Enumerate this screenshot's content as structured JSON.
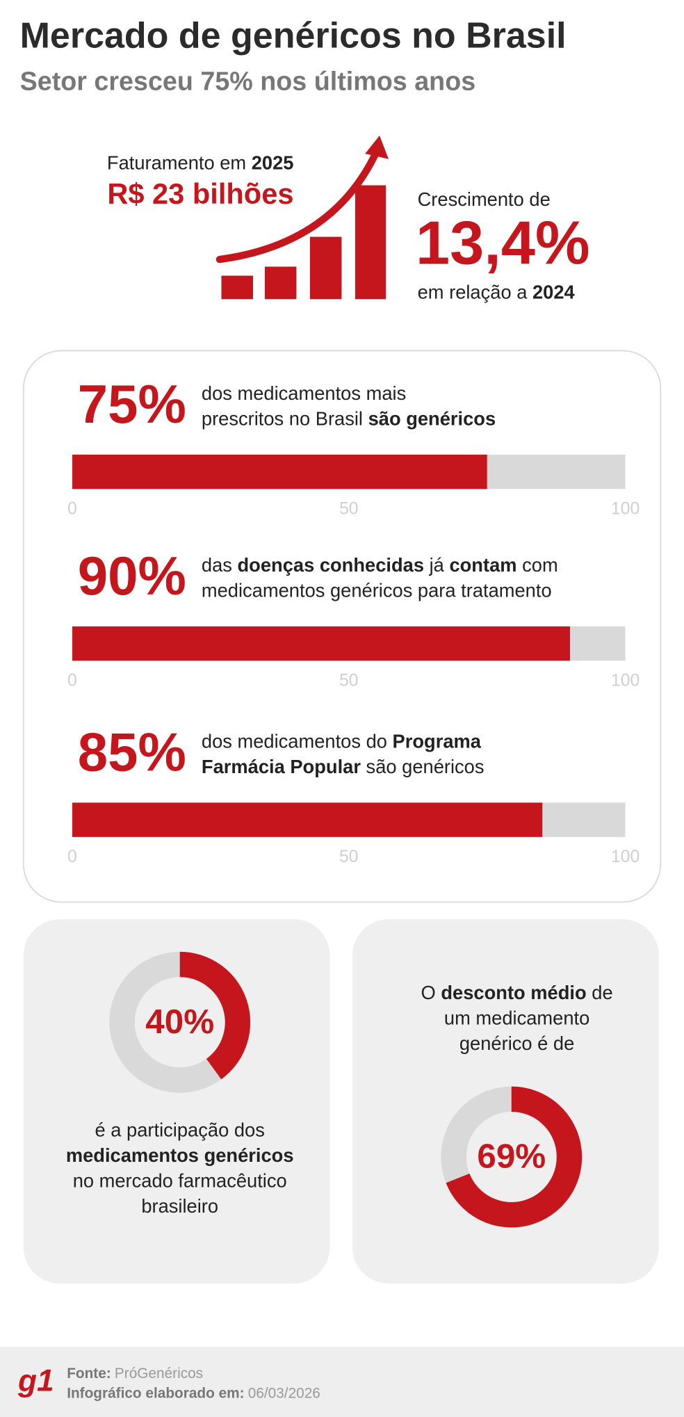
{
  "header": {
    "title": "Mercado de genéricos no Brasil",
    "subtitle": "Setor cresceu 75% nos últimos anos"
  },
  "highlight": {
    "revenue_label": [
      {
        "text": "Faturamento em "
      },
      {
        "text": "2025",
        "bold": true
      }
    ],
    "revenue": "R$ 23 bilhões",
    "growth_label": "Crescimento de",
    "growth": "13,4%",
    "growth_note": [
      {
        "text": "em relação a "
      },
      {
        "text": "2024",
        "bold": true
      }
    ]
  },
  "chart_data": [
    {
      "type": "bar",
      "orientation": "horizontal",
      "values": [
        75
      ],
      "value_labels": [
        "75%"
      ],
      "description": [
        [
          {
            "text": "dos medicamentos mais"
          }
        ],
        [
          {
            "text": "prescritos no Brasil "
          },
          {
            "text": "são genéricos",
            "bold": true
          }
        ]
      ],
      "xlim": [
        0,
        100
      ],
      "xticks": [
        0,
        50,
        100
      ],
      "color": "#c4161c",
      "track_color": "#d9d9d9"
    },
    {
      "type": "bar",
      "orientation": "horizontal",
      "values": [
        90
      ],
      "value_labels": [
        "90%"
      ],
      "description": [
        [
          {
            "text": "das "
          },
          {
            "text": "doenças conhecidas",
            "bold": true
          },
          {
            "text": " já "
          },
          {
            "text": "contam",
            "bold": true
          },
          {
            "text": " com"
          }
        ],
        [
          {
            "text": "medicamentos genéricos para tratamento"
          }
        ]
      ],
      "xlim": [
        0,
        100
      ],
      "xticks": [
        0,
        50,
        100
      ],
      "color": "#c4161c",
      "track_color": "#d9d9d9"
    },
    {
      "type": "bar",
      "orientation": "horizontal",
      "values": [
        85
      ],
      "value_labels": [
        "85%"
      ],
      "description": [
        [
          {
            "text": "dos medicamentos do "
          },
          {
            "text": "Programa",
            "bold": true
          }
        ],
        [
          {
            "text": "Farmácia Popular",
            "bold": true
          },
          {
            "text": " são genéricos"
          }
        ]
      ],
      "xlim": [
        0,
        100
      ],
      "xticks": [
        0,
        50,
        100
      ],
      "color": "#c4161c",
      "track_color": "#d9d9d9"
    },
    {
      "type": "donut",
      "values": [
        40
      ],
      "value_labels": [
        "40%"
      ],
      "total": 100,
      "caption": [
        [
          {
            "text": "é a participação dos"
          }
        ],
        [
          {
            "text": "medicamentos genéricos",
            "bold": true
          }
        ],
        [
          {
            "text": "no mercado farmacêutico"
          }
        ],
        [
          {
            "text": "brasileiro"
          }
        ]
      ],
      "color": "#c4161c",
      "track_color": "#d9d9d9"
    },
    {
      "type": "donut",
      "values": [
        69
      ],
      "value_labels": [
        "69%"
      ],
      "total": 100,
      "caption": [
        [
          {
            "text": "O "
          },
          {
            "text": "desconto médio",
            "bold": true
          },
          {
            "text": " de"
          }
        ],
        [
          {
            "text": "um medicamento"
          }
        ],
        [
          {
            "text": "genérico é de"
          }
        ]
      ],
      "color": "#c4161c",
      "track_color": "#d9d9d9"
    }
  ],
  "footer": {
    "logo": "g1",
    "source_label": "Fonte:",
    "source": "PróGenéricos",
    "date_label": "Infográfico elaborado em:",
    "date": "06/03/2026"
  }
}
